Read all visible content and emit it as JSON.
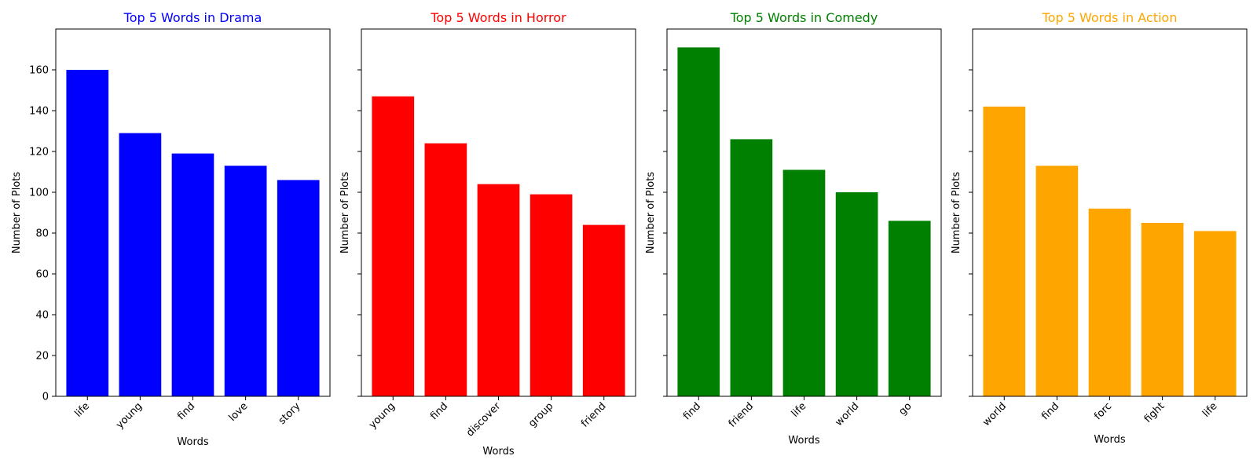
{
  "chart_data": [
    {
      "type": "bar",
      "title": "Top 5 Words in Drama",
      "title_color": "#0000ff",
      "bar_color": "#0000ff",
      "categories": [
        "life",
        "young",
        "find",
        "love",
        "story"
      ],
      "values": [
        160,
        129,
        119,
        113,
        106
      ],
      "xlabel": "Words",
      "ylabel": "Number of Plots",
      "ylim": [
        0,
        180
      ],
      "yticks": [
        0,
        20,
        40,
        60,
        80,
        100,
        120,
        140,
        160
      ]
    },
    {
      "type": "bar",
      "title": "Top 5 Words in Horror",
      "title_color": "#ff0000",
      "bar_color": "#ff0000",
      "categories": [
        "young",
        "find",
        "discover",
        "group",
        "friend"
      ],
      "values": [
        147,
        124,
        104,
        99,
        84
      ],
      "xlabel": "Words",
      "ylabel": "Number of Plots",
      "ylim": [
        0,
        180
      ],
      "yticks": [
        0,
        20,
        40,
        60,
        80,
        100,
        120,
        140,
        160
      ]
    },
    {
      "type": "bar",
      "title": "Top 5 Words in Comedy",
      "title_color": "#008000",
      "bar_color": "#008000",
      "categories": [
        "find",
        "friend",
        "life",
        "world",
        "go"
      ],
      "values": [
        171,
        126,
        111,
        100,
        86
      ],
      "xlabel": "Words",
      "ylabel": "Number of Plots",
      "ylim": [
        0,
        180
      ],
      "yticks": [
        0,
        20,
        40,
        60,
        80,
        100,
        120,
        140,
        160
      ]
    },
    {
      "type": "bar",
      "title": "Top 5 Words in Action",
      "title_color": "#ffa500",
      "bar_color": "#ffa500",
      "categories": [
        "world",
        "find",
        "forc",
        "fight",
        "life"
      ],
      "values": [
        142,
        113,
        92,
        85,
        81
      ],
      "xlabel": "Words",
      "ylabel": "Number of Plots",
      "ylim": [
        0,
        180
      ],
      "yticks": [
        0,
        20,
        40,
        60,
        80,
        100,
        120,
        140,
        160
      ]
    }
  ]
}
